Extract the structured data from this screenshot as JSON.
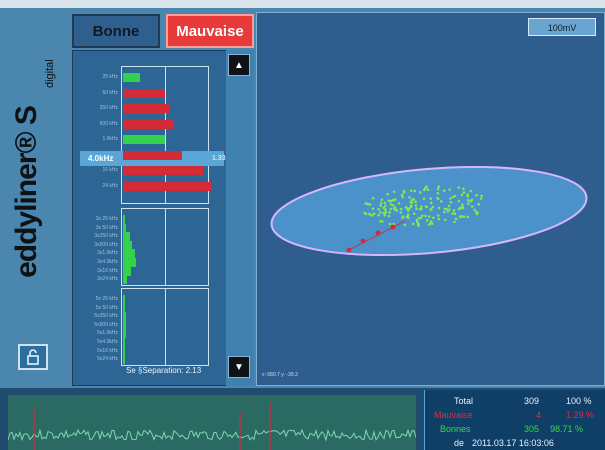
{
  "brand": {
    "name": "eddyliner® S",
    "subtitle": "digital"
  },
  "tabs": {
    "good_label": "Bonne",
    "bad_label": "Mauvaise"
  },
  "scale": {
    "label": "100mV"
  },
  "frequency_rows": [
    {
      "label": "25 kHz",
      "status": "good",
      "value_fraction": 0.19
    },
    {
      "label": "50 kHz",
      "status": "bad",
      "value_fraction": 0.47
    },
    {
      "label": "250 kHz",
      "status": "bad",
      "value_fraction": 0.51
    },
    {
      "label": "500 kHz",
      "status": "bad",
      "value_fraction": 0.57
    },
    {
      "label": "1.0kHz",
      "status": "good",
      "value_fraction": 0.47
    },
    {
      "label": "4.0kHz",
      "status": "bad",
      "value_fraction": 0.66,
      "selected": true,
      "value": "1.33"
    },
    {
      "label": "16 kHz",
      "status": "bad",
      "value_fraction": 0.89
    },
    {
      "label": "24 kHz",
      "status": "bad",
      "value_fraction": 0.98
    }
  ],
  "harmonic_rows_a": [
    {
      "label": "3x 25 kHz",
      "value_fraction": 0.02
    },
    {
      "label": "3x 50 kHz",
      "value_fraction": 0.03
    },
    {
      "label": "3x250 kHz",
      "value_fraction": 0.08
    },
    {
      "label": "3x500 kHz",
      "value_fraction": 0.1
    },
    {
      "label": "3x1.0kHz",
      "value_fraction": 0.13
    },
    {
      "label": "3x4.0kHz",
      "value_fraction": 0.14
    },
    {
      "label": "3x16 kHz",
      "value_fraction": 0.09
    },
    {
      "label": "3x24 kHz",
      "value_fraction": 0.04
    }
  ],
  "harmonic_rows_b": [
    {
      "label": "5x 25 kHz",
      "value_fraction": 0.02
    },
    {
      "label": "5x 50 kHz",
      "value_fraction": 0.02
    },
    {
      "label": "5x250 kHz",
      "value_fraction": 0.03
    },
    {
      "label": "5x500 kHz",
      "value_fraction": 0.03
    },
    {
      "label": "5x1.0kHz",
      "value_fraction": 0.03
    },
    {
      "label": "5x4.0kHz",
      "value_fraction": 0.02
    },
    {
      "label": "5x16 kHz",
      "value_fraction": 0.02
    },
    {
      "label": "5x24 kHz",
      "value_fraction": 0.02
    }
  ],
  "separation": {
    "label": "Se  §Separation:  2.13"
  },
  "plot": {
    "coords": "x: 680.7 y: -39.2"
  },
  "stats": {
    "total_label": "Total",
    "total_count": "309",
    "total_pct": "100 %",
    "bad_label": "Mauvaise",
    "bad_count": "4",
    "bad_pct": "1.29 %",
    "good_label": "Bonnes",
    "good_count": "305",
    "good_pct": "98.71 %",
    "since_label": "de",
    "since_value": "2011.03.17  16:03:06"
  },
  "colors": {
    "good": "#34d14a",
    "bad": "#d52a38",
    "ellipse": "#d7b6ff"
  },
  "icons": {
    "lock": "lock-icon",
    "up": "chevron-up-icon",
    "down": "chevron-down-icon"
  }
}
